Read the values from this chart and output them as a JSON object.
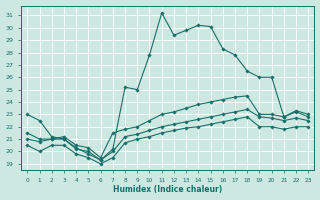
{
  "title": "",
  "xlabel": "Humidex (Indice chaleur)",
  "background_color": "#cce8e0",
  "grid_color": "#ffffff",
  "line_color": "#1a6e6a",
  "xlim": [
    -0.5,
    23.5
  ],
  "ylim": [
    18.5,
    31.8
  ],
  "yticks": [
    19,
    20,
    21,
    22,
    23,
    24,
    25,
    26,
    27,
    28,
    29,
    30,
    31
  ],
  "xticks": [
    0,
    1,
    2,
    3,
    4,
    5,
    6,
    7,
    8,
    9,
    10,
    11,
    12,
    13,
    14,
    15,
    16,
    17,
    18,
    19,
    20,
    21,
    22,
    23
  ],
  "lines": [
    {
      "x": [
        0,
        1,
        2,
        3,
        4,
        5,
        6,
        7,
        8,
        9,
        10,
        11,
        12,
        13,
        14,
        15,
        16,
        17,
        18,
        19,
        20,
        21,
        22,
        23
      ],
      "y": [
        23.0,
        22.5,
        21.2,
        21.0,
        20.3,
        19.8,
        19.3,
        20.2,
        25.2,
        25.0,
        27.8,
        31.2,
        29.4,
        29.8,
        30.2,
        30.1,
        28.3,
        27.8,
        26.5,
        26.0,
        26.0,
        22.8,
        23.3,
        23.0
      ]
    },
    {
      "x": [
        0,
        1,
        2,
        3,
        4,
        5,
        6,
        7,
        8,
        9,
        10,
        11,
        12,
        13,
        14,
        15,
        16,
        17,
        18,
        19,
        20,
        21,
        22,
        23
      ],
      "y": [
        21.5,
        21.0,
        21.0,
        21.2,
        20.5,
        20.3,
        19.5,
        21.5,
        21.8,
        22.0,
        22.5,
        23.0,
        23.2,
        23.5,
        23.8,
        24.0,
        24.2,
        24.4,
        24.5,
        23.0,
        23.0,
        22.8,
        23.2,
        22.8
      ]
    },
    {
      "x": [
        0,
        1,
        2,
        3,
        4,
        5,
        6,
        7,
        8,
        9,
        10,
        11,
        12,
        13,
        14,
        15,
        16,
        17,
        18,
        19,
        20,
        21,
        22,
        23
      ],
      "y": [
        21.0,
        20.8,
        21.0,
        21.0,
        20.2,
        20.0,
        19.3,
        20.0,
        21.2,
        21.4,
        21.7,
        22.0,
        22.2,
        22.4,
        22.6,
        22.8,
        23.0,
        23.2,
        23.4,
        22.8,
        22.7,
        22.5,
        22.7,
        22.5
      ]
    },
    {
      "x": [
        0,
        1,
        2,
        3,
        4,
        5,
        6,
        7,
        8,
        9,
        10,
        11,
        12,
        13,
        14,
        15,
        16,
        17,
        18,
        19,
        20,
        21,
        22,
        23
      ],
      "y": [
        20.5,
        20.0,
        20.5,
        20.5,
        19.8,
        19.5,
        19.0,
        19.5,
        20.7,
        21.0,
        21.2,
        21.5,
        21.7,
        21.9,
        22.0,
        22.2,
        22.4,
        22.6,
        22.8,
        22.0,
        22.0,
        21.8,
        22.0,
        22.0
      ]
    }
  ]
}
